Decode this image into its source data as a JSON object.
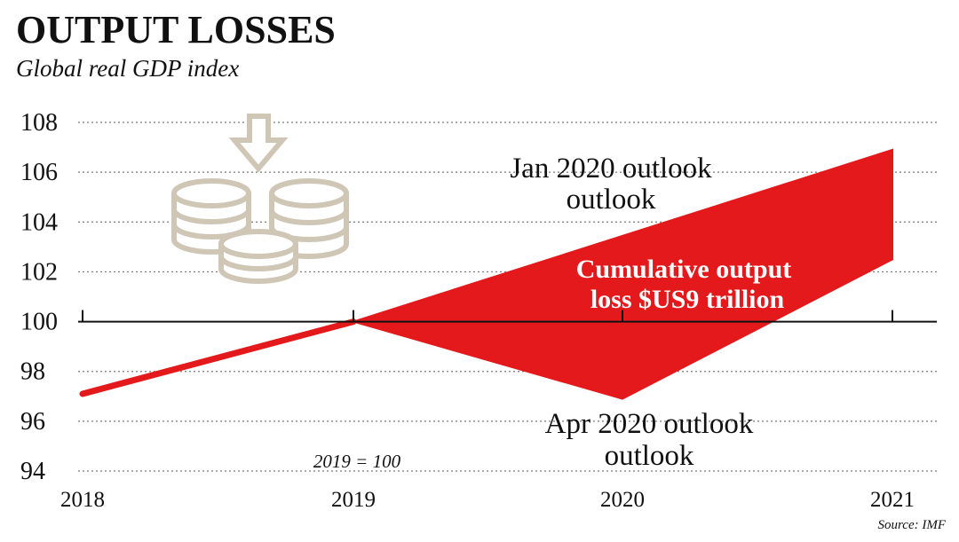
{
  "chart_data": {
    "type": "area",
    "title": "OUTPUT LOSSES",
    "subtitle": "Global real GDP index",
    "x_categories": [
      "2018",
      "2019",
      "2020",
      "2021"
    ],
    "y_ticks": [
      "108",
      "106",
      "104",
      "102",
      "100",
      "98",
      "96",
      "94"
    ],
    "ylim": [
      94,
      108
    ],
    "grid": "dotted horizontal",
    "series": [
      {
        "name": "Jan 2020 outlook",
        "x": [
          2018,
          2019,
          2021
        ],
        "y": [
          97.1,
          100,
          106.9
        ]
      },
      {
        "name": "Apr 2020 outlook",
        "x": [
          2018,
          2019,
          2020,
          2021
        ],
        "y": [
          97.1,
          100,
          96.9,
          102.5
        ]
      }
    ],
    "shaded_area": {
      "label": [
        "Cumulative output",
        "loss $US9 trillion"
      ],
      "color": "#e3191b"
    },
    "baseline_label": "2019 = 100",
    "source": "Source: IMF"
  }
}
